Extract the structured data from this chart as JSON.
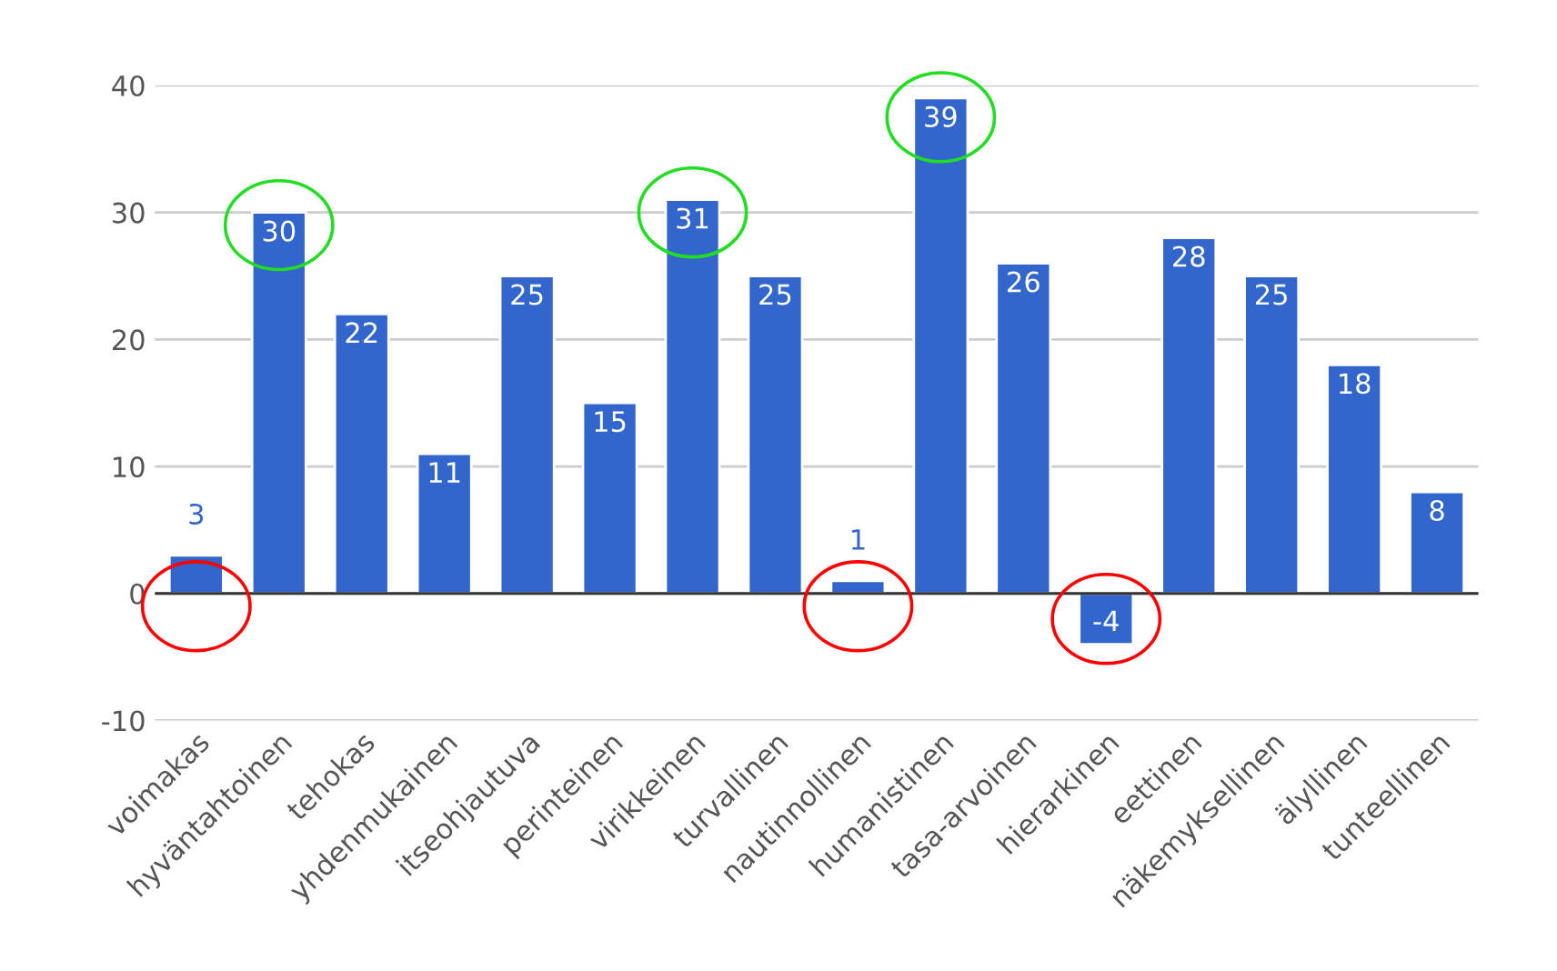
{
  "chart_data": {
    "type": "bar",
    "categories": [
      "voimakas",
      "hyväntahtoinen",
      "tehokas",
      "yhdenmukainen",
      "itseohjautuva",
      "perinteinen",
      "virikkeinen",
      "turvallinen",
      "nautinnollinen",
      "humanistinen",
      "tasa-arvoinen",
      "hierarkinen",
      "eettinen",
      "näkemyksellinen",
      "älyllinen",
      "tunteellinen"
    ],
    "values": [
      3,
      30,
      22,
      11,
      25,
      15,
      31,
      25,
      1,
      39,
      26,
      -4,
      28,
      25,
      18,
      8
    ],
    "color": "#3366cc",
    "ylim": [
      -10,
      40
    ],
    "yticks": [
      -10,
      0,
      10,
      20,
      30,
      40
    ],
    "grid": "y",
    "data_labels": true
  }
}
